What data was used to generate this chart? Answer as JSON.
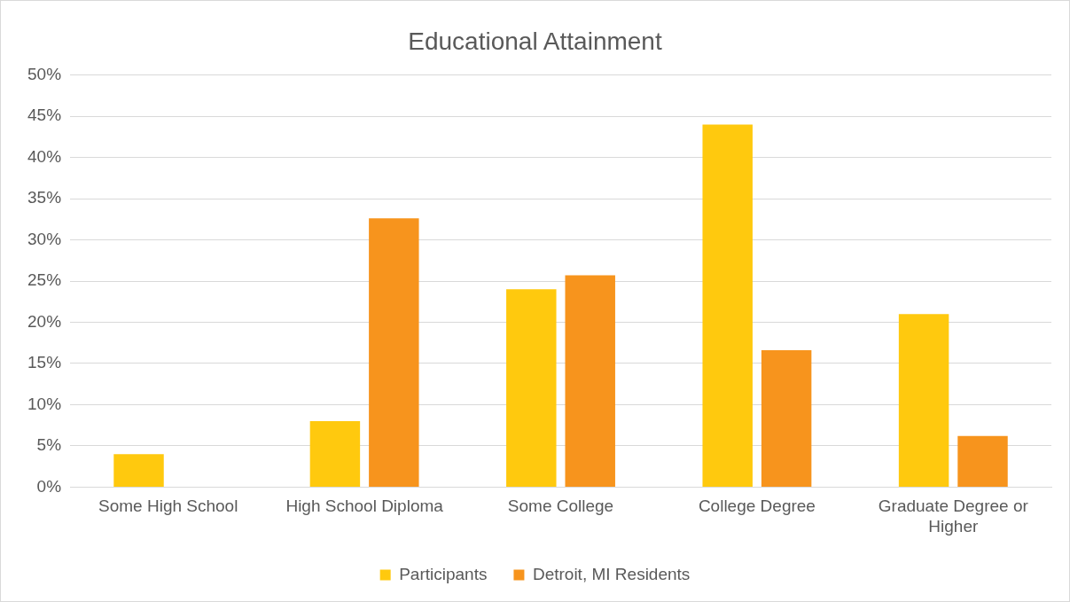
{
  "chart_data": {
    "type": "bar",
    "title": "Educational Attainment",
    "categories": [
      "Some High School",
      "High School Diploma",
      "Some College",
      "College Degree",
      "Graduate Degree or Higher"
    ],
    "series": [
      {
        "name": "Participants",
        "color": "#ffc90e",
        "values": [
          4,
          8,
          24,
          44,
          21
        ]
      },
      {
        "name": "Detroit, MI Residents",
        "color": "#f7941d",
        "values": [
          null,
          32.6,
          25.7,
          16.6,
          6.2
        ]
      }
    ],
    "ylim": [
      0,
      50
    ],
    "yticks": [
      {
        "value": 0,
        "label": "0%"
      },
      {
        "value": 5,
        "label": "5%"
      },
      {
        "value": 10,
        "label": "10%"
      },
      {
        "value": 15,
        "label": "15%"
      },
      {
        "value": 20,
        "label": "20%"
      },
      {
        "value": 25,
        "label": "25%"
      },
      {
        "value": 30,
        "label": "30%"
      },
      {
        "value": 35,
        "label": "35%"
      },
      {
        "value": 40,
        "label": "40%"
      },
      {
        "value": 45,
        "label": "45%"
      },
      {
        "value": 50,
        "label": "50%"
      }
    ],
    "grid": "y",
    "legend": "bottom"
  }
}
